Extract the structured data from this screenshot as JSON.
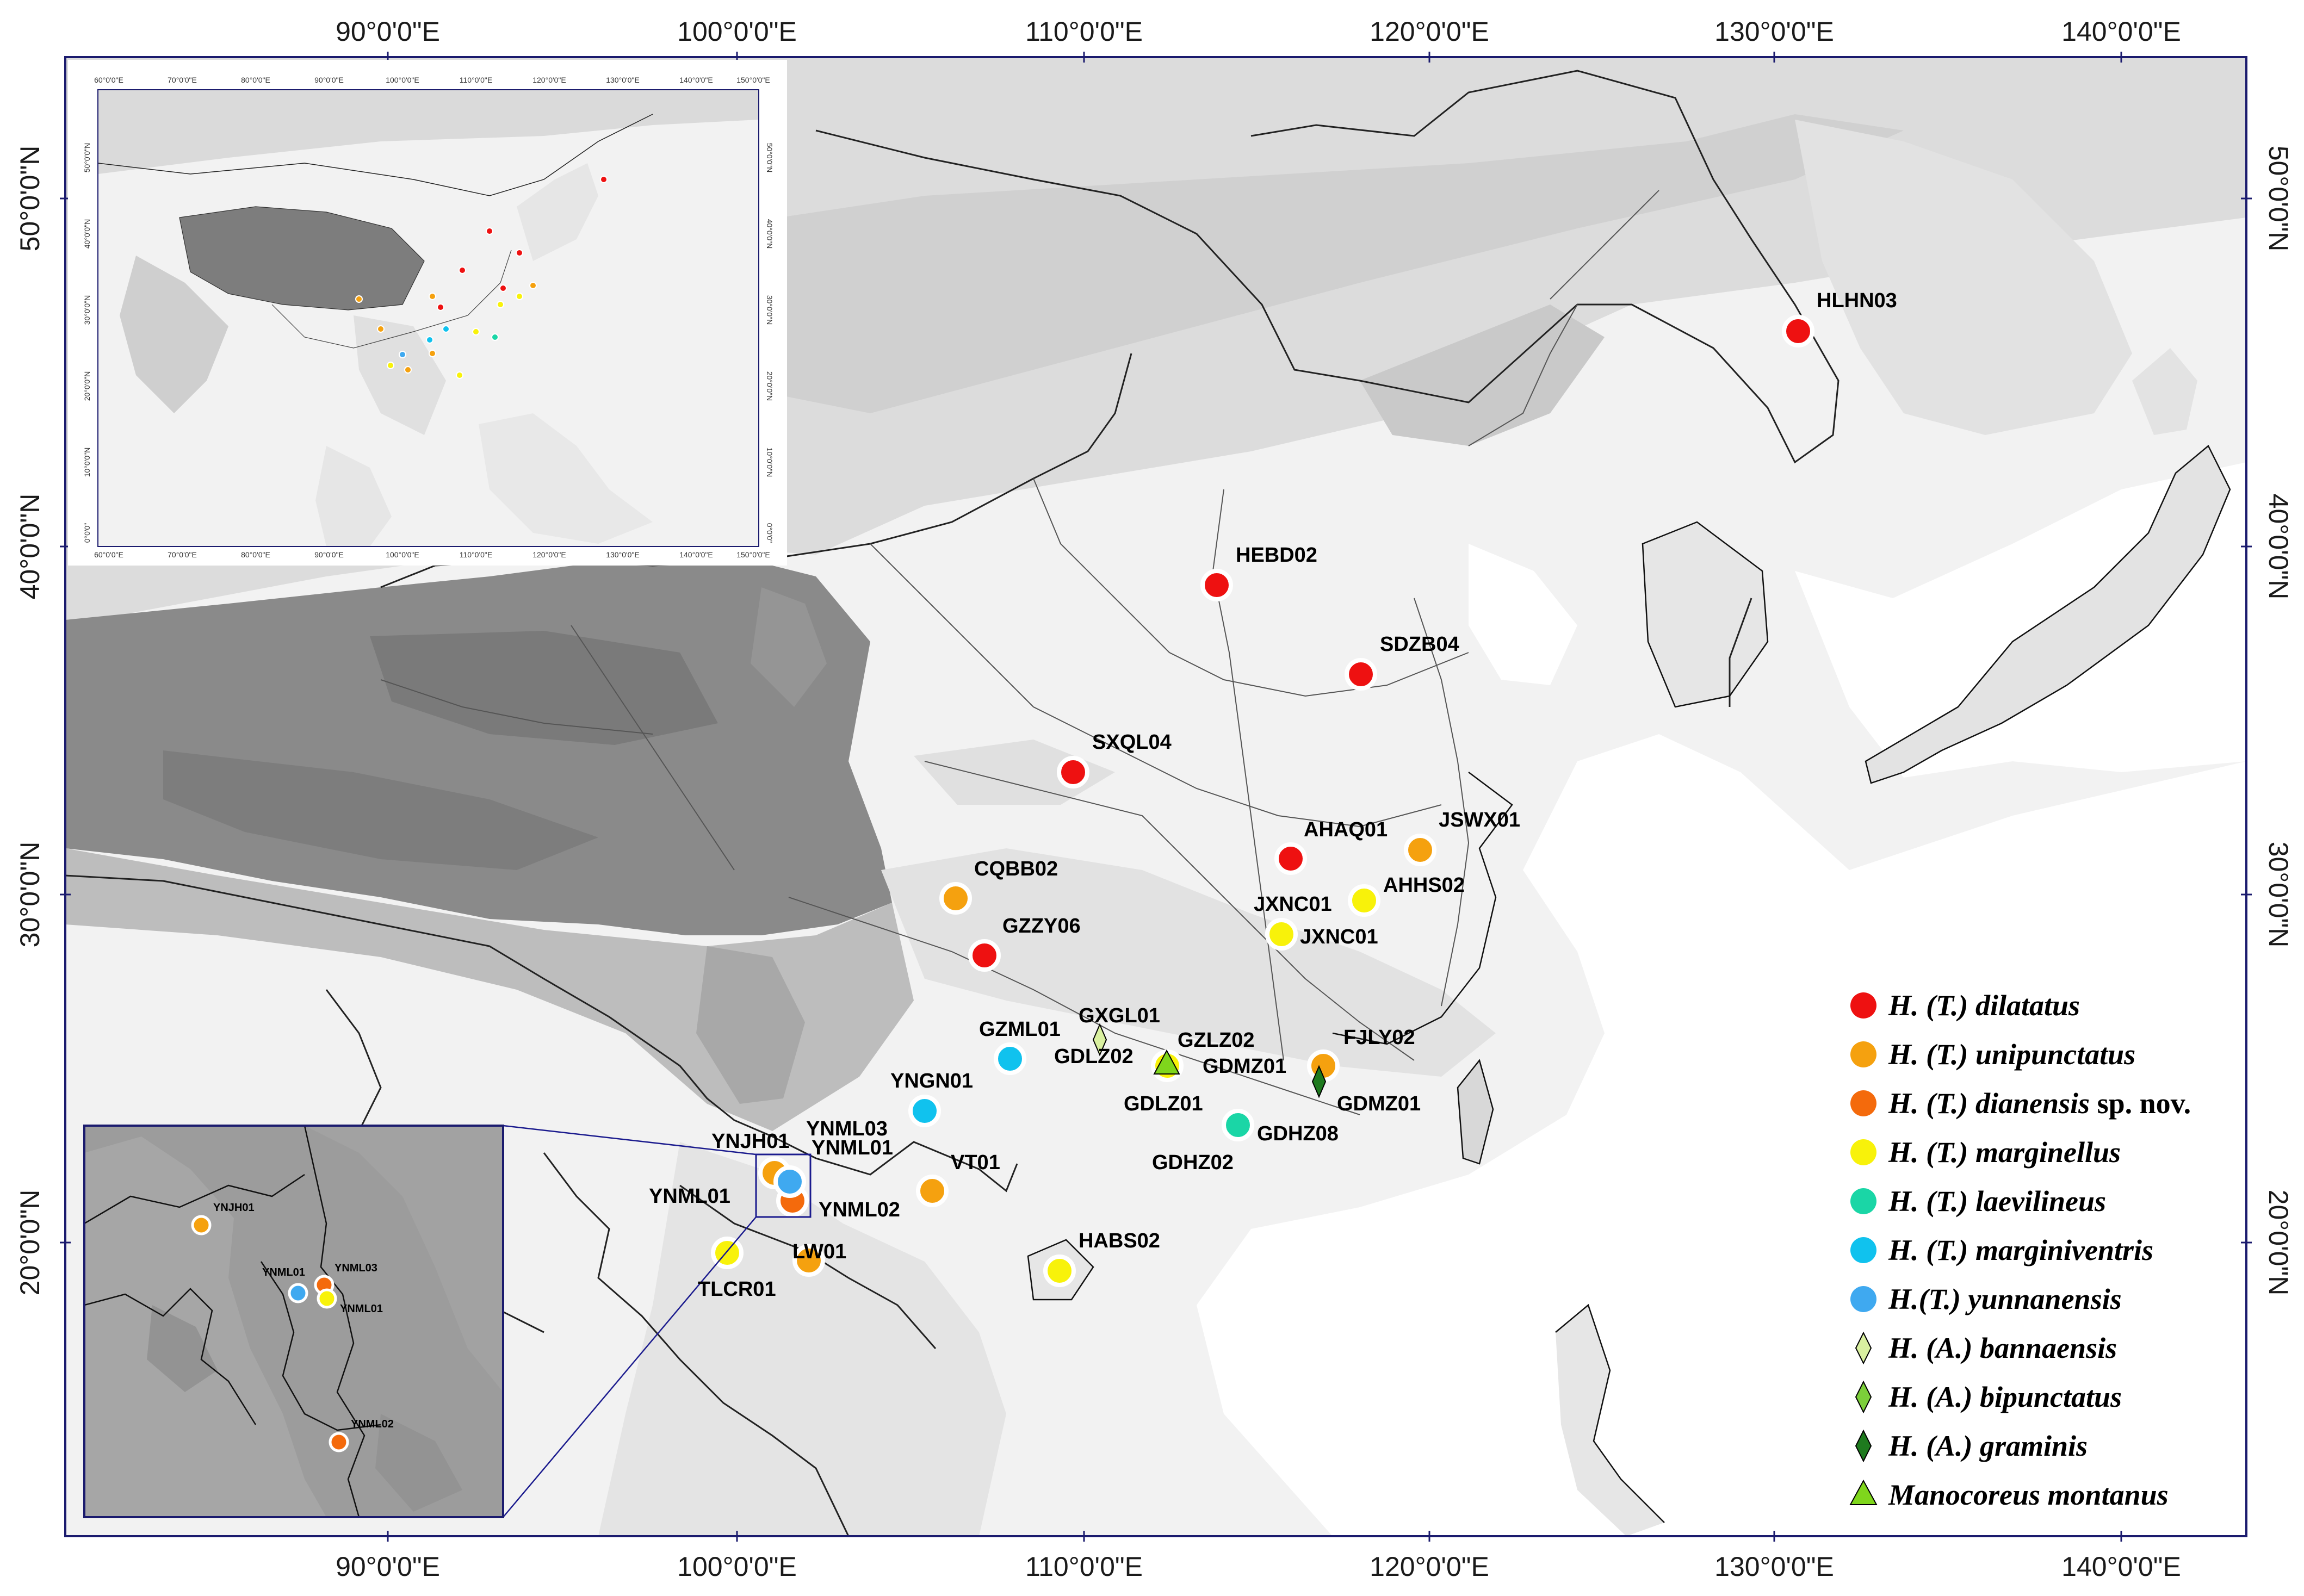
{
  "map": {
    "top_lon_labels": [
      "90°0'0\"E",
      "100°0'0\"E",
      "110°0'0\"E",
      "120°0'0\"E",
      "130°0'0\"E",
      "140°0'0\"E"
    ],
    "bottom_lon_labels": [
      "90°0'0\"E",
      "100°0'0\"E",
      "110°0'0\"E",
      "120°0'0\"E",
      "130°0'0\"E",
      "140°0'0\"E"
    ],
    "left_lat_labels": [
      "50°0'0\"N",
      "40°0'0\"N",
      "30°0'0\"N",
      "20°0'0\"N"
    ],
    "right_lat_labels": [
      "50°0'0\"N",
      "40°0'0\"N",
      "30°0'0\"N",
      "20°0'0\"N"
    ]
  },
  "sites": [
    {
      "label": "HLHN03"
    },
    {
      "label": "HEBD02"
    },
    {
      "label": "SDZB04"
    },
    {
      "label": "SXQL04"
    },
    {
      "label": "AHAQ01"
    },
    {
      "label": "JSWX01"
    },
    {
      "label": "CQBB02"
    },
    {
      "label": "JXNC01"
    },
    {
      "label": "AHHS02"
    },
    {
      "label": "JXNC01"
    },
    {
      "label": "GZZY06"
    },
    {
      "label": "GXGL01"
    },
    {
      "label": "GZML01"
    },
    {
      "label": "GDLZ02"
    },
    {
      "label": "GZLZ02"
    },
    {
      "label": "FJLY02"
    },
    {
      "label": "GDMZ01"
    },
    {
      "label": "YNGN01"
    },
    {
      "label": "GDLZ01"
    },
    {
      "label": "GDMZ01"
    },
    {
      "label": "GDHZ08"
    },
    {
      "label": "YNJH01"
    },
    {
      "label": "YNML03"
    },
    {
      "label": "YNML01"
    },
    {
      "label": "VT01"
    },
    {
      "label": "GDHZ02"
    },
    {
      "label": "YNML01"
    },
    {
      "label": "YNML02"
    },
    {
      "label": "HABS02"
    },
    {
      "label": "LW01"
    },
    {
      "label": "TLCR01"
    }
  ],
  "legend": [
    {
      "label": "H. (T.) dilatatus",
      "color": "#ee1111",
      "shape": "circle"
    },
    {
      "label": "H. (T.) unipunctatus",
      "color": "#f5a10f",
      "shape": "circle"
    },
    {
      "label": "H. (T.) dianensis",
      "suffix": "sp. nov.",
      "color": "#f46a0c",
      "shape": "circle"
    },
    {
      "label": "H. (T.) marginellus",
      "color": "#f8f20a",
      "shape": "circle"
    },
    {
      "label": "H. (T.) laevilineus",
      "color": "#1ad6a6",
      "shape": "circle"
    },
    {
      "label": "H. (T.) marginiventris",
      "color": "#10c2ee",
      "shape": "circle"
    },
    {
      "label": "H.(T.) yunnanensis",
      "color": "#3fa9f0",
      "shape": "circle"
    },
    {
      "label": "H. (A.) bannaensis",
      "color": "#d9f0a0",
      "shape": "diamond"
    },
    {
      "label": "H. (A.) bipunctatus",
      "color": "#7ccf3a",
      "shape": "diamond"
    },
    {
      "label": "H. (A.) graminis",
      "color": "#1e7a1e",
      "shape": "diamond"
    },
    {
      "label": "Manocoreus montanus",
      "color": "#7fd61c",
      "shape": "triangle"
    }
  ],
  "inset_overview": {
    "lon_labels": [
      "60°0'0\"E",
      "70°0'0\"E",
      "80°0'0\"E",
      "90°0'0\"E",
      "100°0'0\"E",
      "110°0'0\"E",
      "120°0'0\"E",
      "130°0'0\"E",
      "140°0'0\"E",
      "150°0'0\"E"
    ],
    "lat_labels": [
      "50°0'0\"N",
      "40°0'0\"N",
      "30°0'0\"N",
      "20°0'0\"N",
      "10°0'0\"N",
      "0°0'0\""
    ]
  },
  "inset_detail": {
    "sites": [
      {
        "label": "YNJH01"
      },
      {
        "label": "YNML01"
      },
      {
        "label": "YNML03"
      },
      {
        "label": "YNML01"
      },
      {
        "label": "YNML02"
      }
    ]
  }
}
